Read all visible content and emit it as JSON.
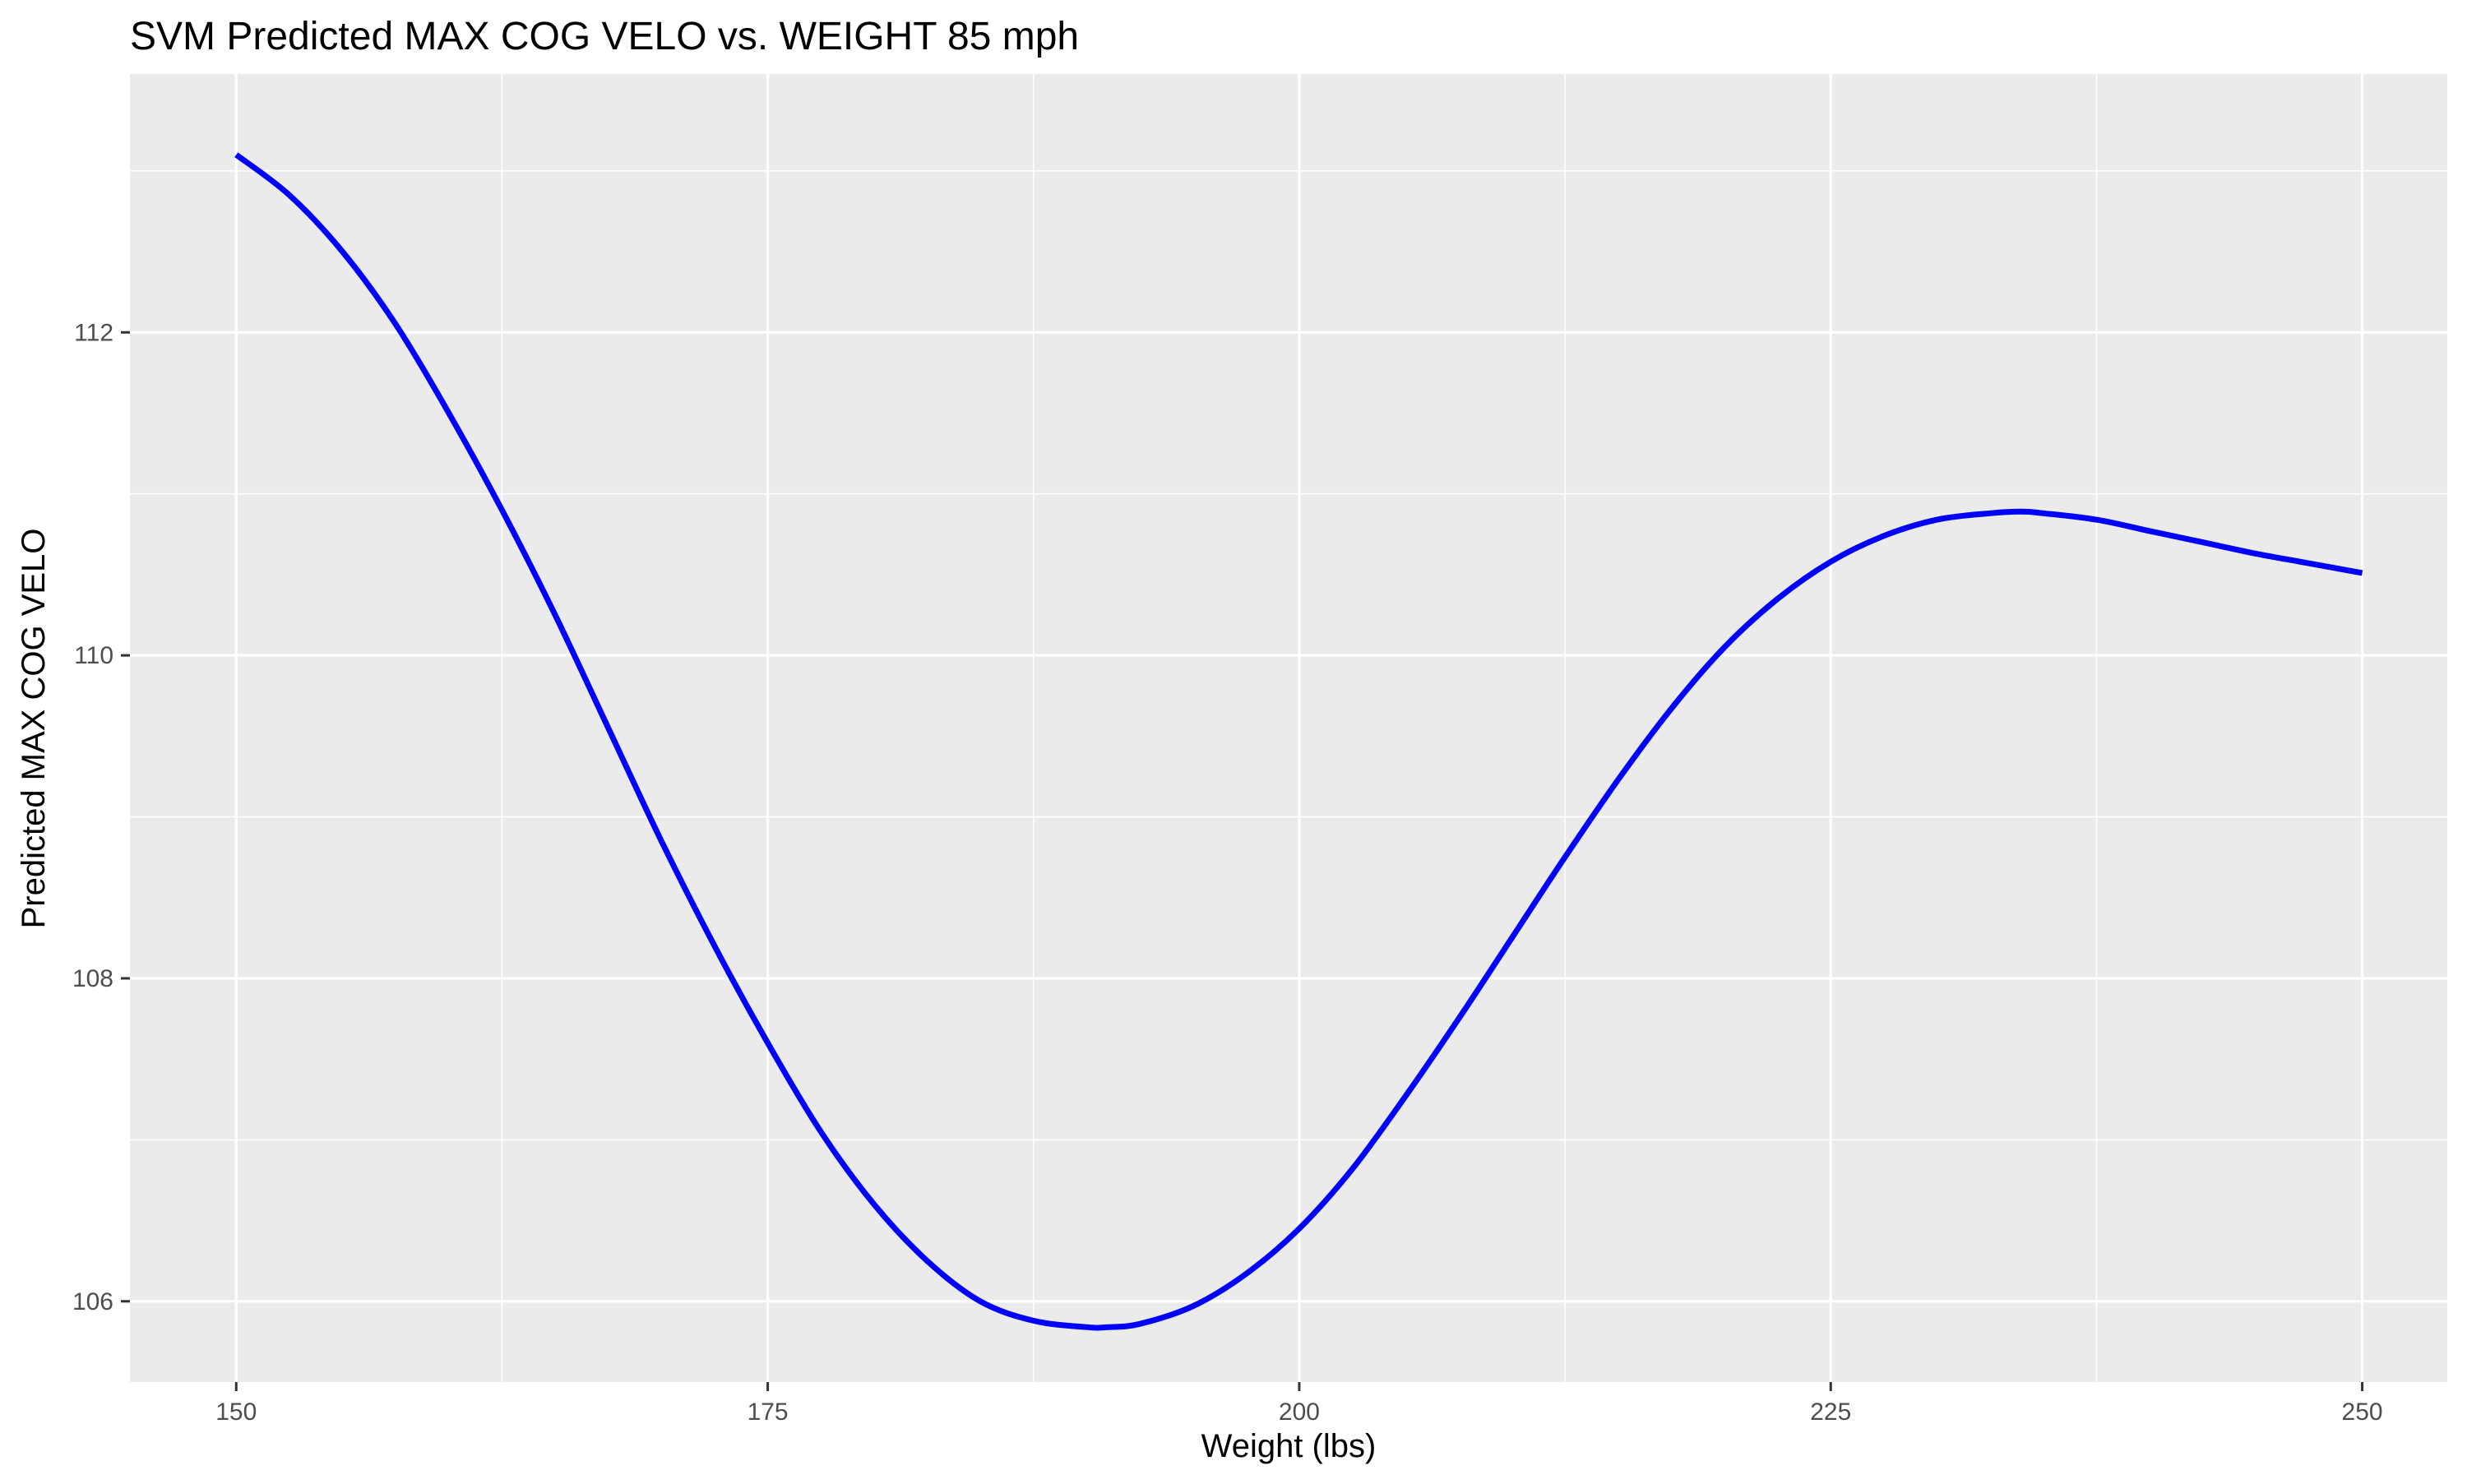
{
  "chart_data": {
    "type": "line",
    "title": "SVM Predicted MAX COG VELO vs. WEIGHT 85 mph",
    "xlabel": "Weight (lbs)",
    "ylabel": "Predicted MAX COG VELO",
    "xlim": [
      145,
      254
    ],
    "ylim": [
      105.5,
      113.6
    ],
    "x_ticks": [
      150,
      175,
      200,
      225,
      250
    ],
    "y_ticks": [
      106,
      108,
      110,
      112
    ],
    "x_minor": [
      162.5,
      187.5,
      212.5,
      237.5
    ],
    "y_minor": [
      107,
      109,
      111,
      113
    ],
    "grid": true,
    "legend": "none",
    "colors": {
      "panel": "#ebebeb",
      "grid": "#ffffff",
      "line": "#0000ff"
    },
    "series": [
      {
        "color": "#0000ff",
        "x": [
          150,
          152.5,
          155,
          157.5,
          160,
          162.5,
          165,
          167.5,
          170,
          172.5,
          175,
          177.5,
          180,
          182.5,
          185,
          187.5,
          190,
          191,
          192.5,
          195,
          197.5,
          200,
          202.5,
          205,
          207.5,
          210,
          212.5,
          215,
          217.5,
          220,
          222.5,
          225,
          227.5,
          230,
          232.5,
          234,
          235,
          237.5,
          240,
          242.5,
          245,
          247.5,
          250
        ],
        "y": [
          113.1,
          112.85,
          112.5,
          112.05,
          111.5,
          110.9,
          110.25,
          109.55,
          108.85,
          108.2,
          107.6,
          107.05,
          106.6,
          106.25,
          106.0,
          105.88,
          105.84,
          105.84,
          105.86,
          105.97,
          106.17,
          106.45,
          106.82,
          107.27,
          107.75,
          108.25,
          108.75,
          109.23,
          109.67,
          110.05,
          110.35,
          110.58,
          110.74,
          110.84,
          110.88,
          110.89,
          110.88,
          110.84,
          110.77,
          110.7,
          110.63,
          110.57,
          110.51
        ]
      }
    ]
  }
}
